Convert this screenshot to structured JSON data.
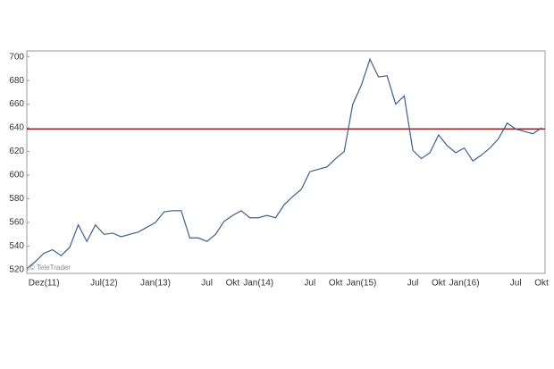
{
  "chart_data": {
    "type": "line",
    "categories": [
      null,
      null,
      "Dez(11)",
      null,
      null,
      null,
      null,
      null,
      null,
      "Jul(12)",
      null,
      null,
      null,
      null,
      null,
      "Jan(13)",
      null,
      null,
      null,
      null,
      null,
      "Jul",
      null,
      null,
      "Okt",
      null,
      null,
      "Jan(14)",
      null,
      null,
      null,
      null,
      null,
      "Jul",
      null,
      null,
      "Okt",
      null,
      null,
      "Jan(15)",
      null,
      null,
      null,
      null,
      null,
      "Jul",
      null,
      null,
      "Okt",
      null,
      null,
      "Jan(16)",
      null,
      null,
      null,
      null,
      null,
      "Jul",
      null,
      null,
      "Okt"
    ],
    "series": [
      {
        "color": "#3b5f8f",
        "values": [
          521,
          527,
          534,
          537,
          532,
          539,
          558,
          544,
          558,
          550,
          551,
          548,
          550,
          552,
          556,
          560,
          569,
          570,
          570,
          547,
          547,
          544,
          550,
          561,
          566,
          570,
          564,
          564,
          566,
          564,
          575,
          582,
          588,
          603,
          605,
          607,
          614,
          620,
          660,
          676,
          698,
          683,
          684,
          660,
          667,
          621,
          614,
          619,
          634,
          625,
          619,
          623,
          612,
          617,
          623,
          631,
          644,
          639,
          637,
          635,
          640
        ]
      }
    ],
    "reference_line": {
      "value": 639,
      "color": "#8b1a1a"
    },
    "ylim": [
      517,
      705
    ],
    "yticks": [
      520,
      540,
      560,
      580,
      600,
      620,
      640,
      660,
      680,
      700
    ],
    "watermark": "© TeleTrader"
  }
}
